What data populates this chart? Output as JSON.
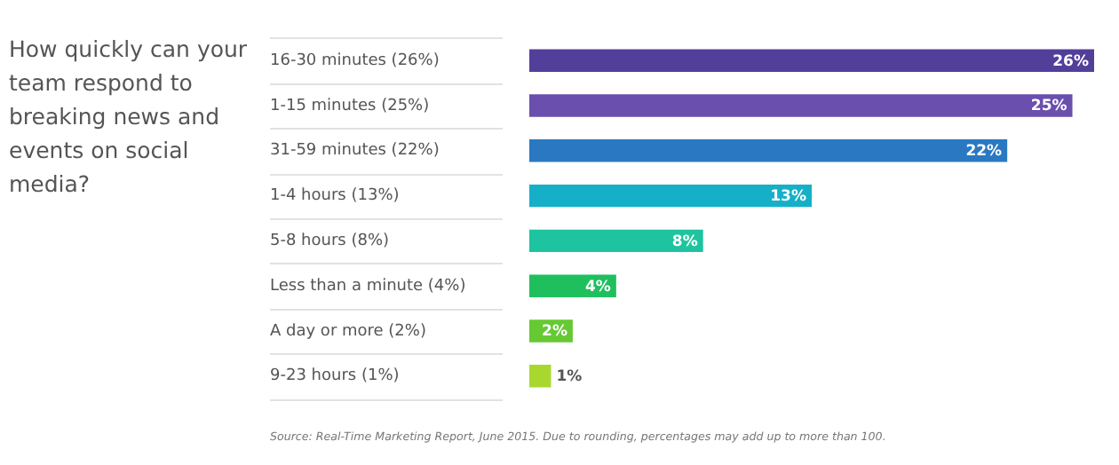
{
  "chart_data": {
    "type": "bar",
    "orientation": "horizontal",
    "title": "How quickly can your team respond to breaking news and events on social media?",
    "categories": [
      "16-30 minutes (26%)",
      "1-15 minutes (25%)",
      "31-59 minutes (22%)",
      "1-4 hours (13%)",
      "5-8 hours (8%)",
      "Less than a minute (4%)",
      "A day or more (2%)",
      "9-23 hours (1%)"
    ],
    "values": [
      26,
      25,
      22,
      13,
      8,
      4,
      2,
      1
    ],
    "colors": [
      "#523f9a",
      "#6a4fae",
      "#2a78c2",
      "#15b0c8",
      "#1ec4a0",
      "#1fbf5e",
      "#66c933",
      "#a8d82e"
    ],
    "value_labels": [
      "26%",
      "25%",
      "22%",
      "13%",
      "8%",
      "4%",
      "2%",
      "1%"
    ],
    "xlim": [
      0,
      26
    ],
    "tick_labels": "y",
    "legend": false,
    "annotations": [
      "Source: Real-Time Marketing Report,  June 2015.  Due to rounding, percentages may add up to more than 100."
    ]
  }
}
